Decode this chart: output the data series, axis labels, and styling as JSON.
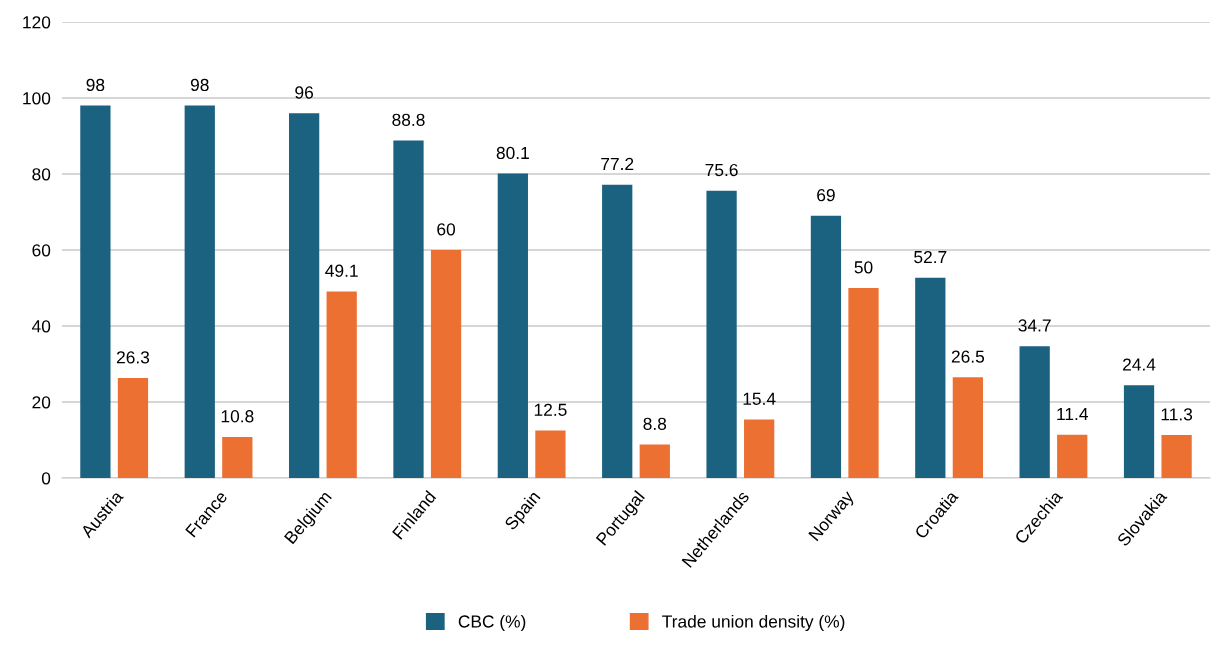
{
  "chart_data": {
    "type": "bar",
    "categories": [
      "Austria",
      "France",
      "Belgium",
      "Finland",
      "Spain",
      "Portugal",
      "Netherlands",
      "Norway",
      "Croatia",
      "Czechia",
      "Slovakia"
    ],
    "series": [
      {
        "name": "CBC (%)",
        "color": "#1b6180",
        "values": [
          98,
          98,
          96,
          88.8,
          80.1,
          77.2,
          75.6,
          69,
          52.7,
          34.7,
          24.4
        ]
      },
      {
        "name": "Trade union density (%)",
        "color": "#ed7033",
        "values": [
          26.3,
          10.8,
          49.1,
          60,
          12.5,
          8.8,
          15.4,
          50,
          26.5,
          11.4,
          11.3
        ]
      }
    ],
    "ylim": [
      0,
      120
    ],
    "yticks": [
      0,
      20,
      40,
      60,
      80,
      100,
      120
    ],
    "grid": "y",
    "legend": "bottom",
    "data_labels": true
  }
}
